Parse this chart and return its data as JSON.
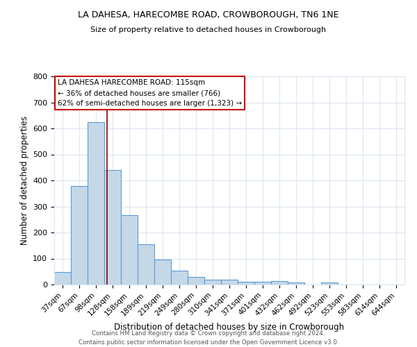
{
  "title1": "LA DAHESA, HARECOMBE ROAD, CROWBOROUGH, TN6 1NE",
  "title2": "Size of property relative to detached houses in Crowborough",
  "xlabel": "Distribution of detached houses by size in Crowborough",
  "ylabel": "Number of detached properties",
  "categories": [
    "37sqm",
    "67sqm",
    "98sqm",
    "128sqm",
    "158sqm",
    "189sqm",
    "219sqm",
    "249sqm",
    "280sqm",
    "310sqm",
    "341sqm",
    "371sqm",
    "401sqm",
    "432sqm",
    "462sqm",
    "492sqm",
    "523sqm",
    "553sqm",
    "583sqm",
    "614sqm",
    "644sqm"
  ],
  "values": [
    47,
    380,
    625,
    440,
    268,
    155,
    97,
    53,
    30,
    18,
    18,
    11,
    11,
    14,
    8,
    0,
    8,
    0,
    0,
    0,
    0
  ],
  "bar_color": "#c5d8e8",
  "bar_edge_color": "#5b9bd5",
  "vline_x": 2.67,
  "vline_color": "#8b0000",
  "annotation_line1": "LA DAHESA HARECOMBE ROAD: 115sqm",
  "annotation_line2": "← 36% of detached houses are smaller (766)",
  "annotation_line3": "62% of semi-detached houses are larger (1,323) →",
  "annotation_box_color": "#ffffff",
  "annotation_box_edge": "#cc0000",
  "ylim": [
    0,
    800
  ],
  "yticks": [
    0,
    100,
    200,
    300,
    400,
    500,
    600,
    700,
    800
  ],
  "footer1": "Contains HM Land Registry data © Crown copyright and database right 2024.",
  "footer2": "Contains public sector information licensed under the Open Government Licence v3.0.",
  "background_color": "#ffffff",
  "grid_color": "#dce6f0"
}
